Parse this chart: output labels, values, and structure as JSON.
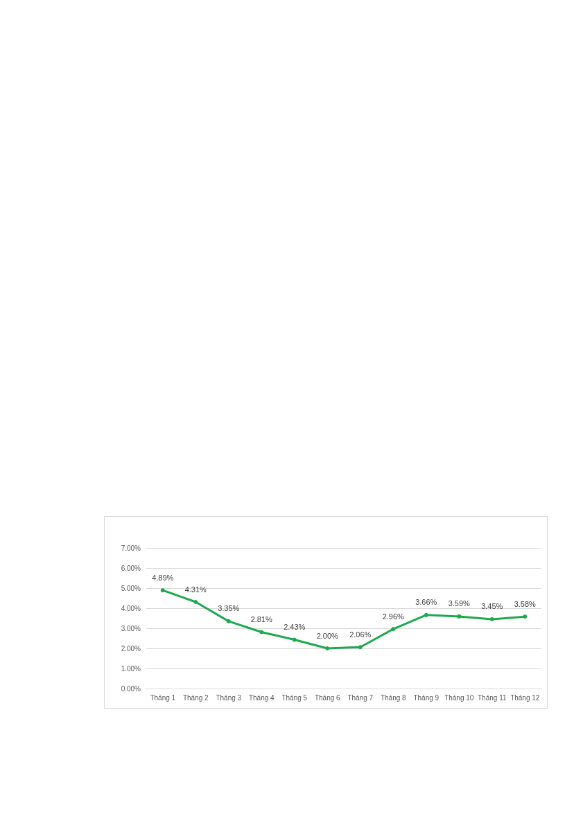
{
  "chart_data": {
    "type": "line",
    "categories": [
      "Tháng 1",
      "Tháng 2",
      "Tháng 3",
      "Tháng 4",
      "Tháng 5",
      "Tháng 6",
      "Tháng 7",
      "Tháng 8",
      "Tháng 9",
      "Tháng 10",
      "Tháng 11",
      "Tháng 12"
    ],
    "series": [
      {
        "color": "#1fa84f",
        "values": [
          4.89,
          4.31,
          3.35,
          2.81,
          2.43,
          2.0,
          2.06,
          2.96,
          3.66,
          3.59,
          3.45,
          3.58
        ],
        "value_labels": [
          "4.89%",
          "4.31%",
          "3.35%",
          "2.81%",
          "2.43%",
          "2.00%",
          "2.06%",
          "2.96%",
          "3.66%",
          "3.59%",
          "3.45%",
          "3.58%"
        ]
      }
    ],
    "ylim": [
      0,
      7
    ],
    "yticks": [
      {
        "value": 0,
        "label": "0.00%"
      },
      {
        "value": 1,
        "label": "1.00%"
      },
      {
        "value": 2,
        "label": "2.00%"
      },
      {
        "value": 3,
        "label": "3.00%"
      },
      {
        "value": 4,
        "label": "4.00%"
      },
      {
        "value": 5,
        "label": "5.00%"
      },
      {
        "value": 6,
        "label": "6.00%"
      },
      {
        "value": 7,
        "label": "7.00%"
      }
    ],
    "grid": "y",
    "marker": "circle",
    "line_style": "solid"
  }
}
